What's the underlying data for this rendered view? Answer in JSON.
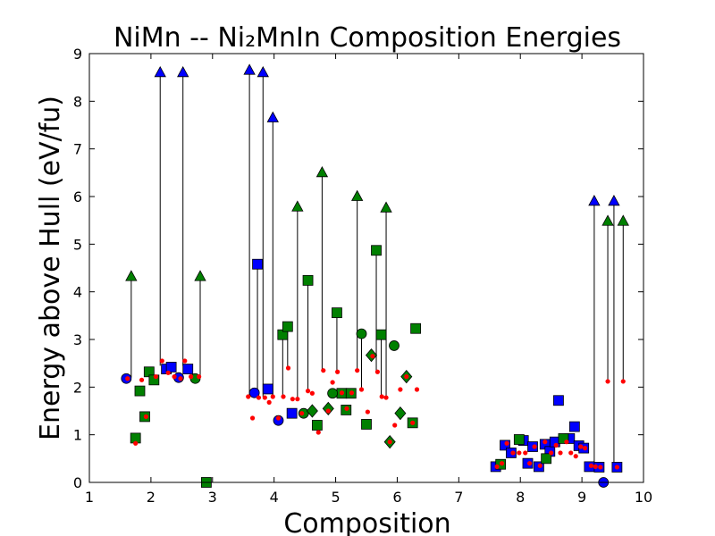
{
  "chart_data": {
    "type": "scatter",
    "title": "NiMn -- Ni₂MnIn Composition Energies",
    "xlabel": "Composition",
    "ylabel": "Energy above Hull (eV/fu)",
    "xlim": [
      1,
      10
    ],
    "ylim": [
      0,
      9
    ],
    "xticks": [
      "1",
      "2",
      "3",
      "4",
      "5",
      "6",
      "7",
      "8",
      "9",
      "10"
    ],
    "yticks": [
      "0",
      "1",
      "2",
      "3",
      "4",
      "5",
      "6",
      "7",
      "8",
      "9"
    ],
    "grid": false,
    "legend": "none",
    "colors": {
      "blue": "#0000ff",
      "green": "#008000",
      "red": "#ff0000",
      "line": "#000000"
    },
    "vertical_lines": [
      {
        "x": 1.68,
        "y0": 2.2,
        "y1": 4.32
      },
      {
        "x": 2.15,
        "y0": 2.45,
        "y1": 8.6
      },
      {
        "x": 2.52,
        "y0": 2.45,
        "y1": 8.6
      },
      {
        "x": 2.8,
        "y0": 2.2,
        "y1": 4.32
      },
      {
        "x": 3.6,
        "y0": 1.8,
        "y1": 8.65
      },
      {
        "x": 3.82,
        "y0": 1.8,
        "y1": 8.6
      },
      {
        "x": 3.98,
        "y0": 1.8,
        "y1": 7.65
      },
      {
        "x": 3.73,
        "y0": 1.8,
        "y1": 4.58
      },
      {
        "x": 4.14,
        "y0": 1.8,
        "y1": 3.1
      },
      {
        "x": 4.22,
        "y0": 2.4,
        "y1": 3.27
      },
      {
        "x": 4.38,
        "y0": 1.75,
        "y1": 5.78
      },
      {
        "x": 4.55,
        "y0": 1.9,
        "y1": 4.24
      },
      {
        "x": 4.78,
        "y0": 2.35,
        "y1": 6.5
      },
      {
        "x": 5.02,
        "y0": 2.3,
        "y1": 3.56
      },
      {
        "x": 5.35,
        "y0": 2.35,
        "y1": 6.0
      },
      {
        "x": 5.42,
        "y0": 1.95,
        "y1": 3.12
      },
      {
        "x": 5.66,
        "y0": 2.3,
        "y1": 4.87
      },
      {
        "x": 5.74,
        "y0": 1.8,
        "y1": 3.1
      },
      {
        "x": 5.82,
        "y0": 1.75,
        "y1": 5.76
      },
      {
        "x": 9.2,
        "y0": 0.35,
        "y1": 5.9
      },
      {
        "x": 9.42,
        "y0": 2.1,
        "y1": 5.48
      },
      {
        "x": 9.52,
        "y0": 0.35,
        "y1": 5.9
      },
      {
        "x": 9.67,
        "y0": 2.1,
        "y1": 5.48
      }
    ],
    "series": [
      {
        "color": "blue",
        "marker": "triangle",
        "points": [
          [
            2.15,
            8.6
          ],
          [
            2.52,
            8.6
          ],
          [
            3.6,
            8.65
          ],
          [
            3.82,
            8.6
          ],
          [
            3.98,
            7.65
          ],
          [
            9.2,
            5.9
          ],
          [
            9.52,
            5.9
          ]
        ]
      },
      {
        "color": "green",
        "marker": "triangle",
        "points": [
          [
            1.68,
            4.32
          ],
          [
            2.8,
            4.32
          ],
          [
            4.38,
            5.78
          ],
          [
            4.78,
            6.5
          ],
          [
            5.35,
            6.0
          ],
          [
            5.82,
            5.76
          ],
          [
            9.42,
            5.48
          ],
          [
            9.67,
            5.48
          ]
        ]
      },
      {
        "color": "blue",
        "marker": "square",
        "points": [
          [
            2.25,
            2.38
          ],
          [
            2.33,
            2.42
          ],
          [
            2.6,
            2.38
          ],
          [
            3.73,
            4.58
          ],
          [
            3.9,
            1.96
          ],
          [
            4.29,
            1.45
          ],
          [
            8.62,
            1.72
          ],
          [
            8.88,
            1.17
          ],
          [
            7.6,
            0.33
          ],
          [
            7.75,
            0.78
          ],
          [
            7.85,
            0.62
          ],
          [
            8.05,
            0.88
          ],
          [
            8.12,
            0.4
          ],
          [
            8.2,
            0.75
          ],
          [
            8.3,
            0.33
          ],
          [
            8.4,
            0.8
          ],
          [
            8.48,
            0.65
          ],
          [
            8.56,
            0.85
          ],
          [
            8.8,
            0.92
          ],
          [
            8.95,
            0.77
          ],
          [
            9.03,
            0.72
          ],
          [
            9.12,
            0.33
          ],
          [
            9.28,
            0.32
          ],
          [
            9.57,
            0.32
          ]
        ]
      },
      {
        "color": "green",
        "marker": "square",
        "points": [
          [
            1.75,
            0.93
          ],
          [
            1.82,
            1.92
          ],
          [
            1.9,
            1.38
          ],
          [
            1.97,
            2.32
          ],
          [
            2.05,
            2.15
          ],
          [
            2.9,
            0.0
          ],
          [
            4.14,
            3.1
          ],
          [
            4.22,
            3.27
          ],
          [
            4.55,
            4.24
          ],
          [
            4.7,
            1.2
          ],
          [
            5.02,
            3.56
          ],
          [
            5.1,
            1.87
          ],
          [
            5.17,
            1.52
          ],
          [
            5.25,
            1.87
          ],
          [
            5.5,
            1.22
          ],
          [
            5.66,
            4.87
          ],
          [
            5.74,
            3.1
          ],
          [
            6.25,
            1.25
          ],
          [
            6.3,
            3.23
          ],
          [
            7.68,
            0.38
          ],
          [
            7.98,
            0.9
          ],
          [
            8.42,
            0.5
          ],
          [
            8.7,
            0.92
          ]
        ]
      },
      {
        "color": "blue",
        "marker": "circle",
        "points": [
          [
            1.6,
            2.18
          ],
          [
            2.45,
            2.2
          ],
          [
            3.68,
            1.88
          ],
          [
            4.07,
            1.3
          ],
          [
            9.35,
            0.0
          ]
        ]
      },
      {
        "color": "green",
        "marker": "circle",
        "points": [
          [
            2.72,
            2.18
          ],
          [
            4.48,
            1.45
          ],
          [
            4.95,
            1.87
          ],
          [
            5.42,
            3.12
          ],
          [
            5.95,
            2.87
          ]
        ]
      },
      {
        "color": "green",
        "marker": "diamond",
        "points": [
          [
            4.62,
            1.5
          ],
          [
            4.88,
            1.55
          ],
          [
            5.58,
            2.67
          ],
          [
            5.88,
            0.85
          ],
          [
            6.05,
            1.45
          ],
          [
            6.15,
            2.22
          ]
        ]
      },
      {
        "color": "red",
        "marker": "dot",
        "points": [
          [
            1.62,
            2.18
          ],
          [
            1.75,
            0.82
          ],
          [
            1.85,
            2.15
          ],
          [
            1.92,
            1.38
          ],
          [
            2.08,
            2.22
          ],
          [
            2.18,
            2.55
          ],
          [
            2.28,
            2.3
          ],
          [
            2.38,
            2.22
          ],
          [
            2.48,
            2.18
          ],
          [
            2.55,
            2.55
          ],
          [
            2.65,
            2.22
          ],
          [
            2.78,
            2.22
          ],
          [
            3.58,
            1.8
          ],
          [
            3.65,
            1.35
          ],
          [
            3.75,
            1.78
          ],
          [
            3.85,
            1.78
          ],
          [
            3.92,
            1.68
          ],
          [
            3.98,
            1.8
          ],
          [
            4.07,
            1.35
          ],
          [
            4.15,
            1.8
          ],
          [
            4.23,
            2.4
          ],
          [
            4.3,
            1.75
          ],
          [
            4.38,
            1.75
          ],
          [
            4.45,
            1.45
          ],
          [
            4.55,
            1.92
          ],
          [
            4.62,
            1.87
          ],
          [
            4.72,
            1.05
          ],
          [
            4.8,
            2.35
          ],
          [
            4.88,
            1.5
          ],
          [
            4.95,
            2.1
          ],
          [
            5.03,
            2.32
          ],
          [
            5.1,
            1.88
          ],
          [
            5.18,
            1.55
          ],
          [
            5.26,
            1.88
          ],
          [
            5.35,
            2.35
          ],
          [
            5.42,
            1.95
          ],
          [
            5.52,
            1.48
          ],
          [
            5.6,
            2.65
          ],
          [
            5.68,
            2.32
          ],
          [
            5.75,
            1.8
          ],
          [
            5.82,
            1.78
          ],
          [
            5.88,
            0.85
          ],
          [
            5.96,
            1.2
          ],
          [
            6.05,
            1.95
          ],
          [
            6.15,
            2.22
          ],
          [
            6.25,
            1.25
          ],
          [
            6.32,
            1.95
          ],
          [
            7.62,
            0.33
          ],
          [
            7.7,
            0.4
          ],
          [
            7.78,
            0.82
          ],
          [
            7.88,
            0.62
          ],
          [
            7.98,
            0.62
          ],
          [
            8.08,
            0.62
          ],
          [
            8.15,
            0.4
          ],
          [
            8.23,
            0.75
          ],
          [
            8.32,
            0.35
          ],
          [
            8.4,
            0.85
          ],
          [
            8.5,
            0.62
          ],
          [
            8.58,
            0.78
          ],
          [
            8.65,
            0.62
          ],
          [
            8.75,
            0.85
          ],
          [
            8.82,
            0.62
          ],
          [
            8.9,
            0.55
          ],
          [
            8.98,
            0.75
          ],
          [
            9.05,
            0.72
          ],
          [
            9.15,
            0.35
          ],
          [
            9.22,
            0.33
          ],
          [
            9.3,
            0.32
          ],
          [
            9.42,
            2.12
          ],
          [
            9.57,
            0.32
          ],
          [
            9.67,
            2.12
          ]
        ]
      }
    ]
  }
}
